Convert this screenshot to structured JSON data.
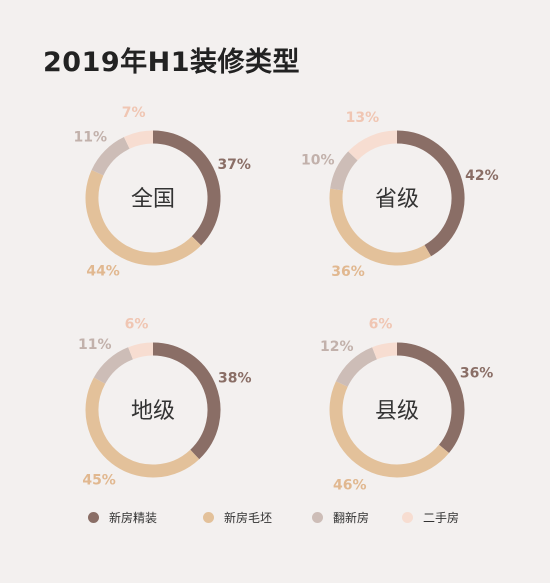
{
  "title": "2019年H1装修类型",
  "chart_data": [
    {
      "type": "donut",
      "label": "全国",
      "categories": [
        "新房精装",
        "新房毛坯",
        "翻新房",
        "二手房"
      ],
      "values": [
        37,
        44,
        11,
        7
      ],
      "value_labels": [
        "37%",
        "44%",
        "11%",
        "7%"
      ]
    },
    {
      "type": "donut",
      "label": "省级",
      "categories": [
        "新房精装",
        "新房毛坯",
        "翻新房",
        "二手房"
      ],
      "values": [
        42,
        36,
        10,
        13
      ],
      "value_labels": [
        "42%",
        "36%",
        "10%",
        "13%"
      ]
    },
    {
      "type": "donut",
      "label": "地级",
      "categories": [
        "新房精装",
        "新房毛坯",
        "翻新房",
        "二手房"
      ],
      "values": [
        38,
        45,
        11,
        6
      ],
      "value_labels": [
        "38%",
        "45%",
        "11%",
        "6%"
      ]
    },
    {
      "type": "donut",
      "label": "县级",
      "categories": [
        "新房精装",
        "新房毛坯",
        "翻新房",
        "二手房"
      ],
      "values": [
        36,
        46,
        12,
        6
      ],
      "value_labels": [
        "36%",
        "46%",
        "12%",
        "6%"
      ]
    }
  ],
  "legend": [
    {
      "label": "新房精装",
      "color": "#8a6e66"
    },
    {
      "label": "新房毛坯",
      "color": "#e3c19a"
    },
    {
      "label": "翻新房",
      "color": "#cdbdb7"
    },
    {
      "label": "二手房",
      "color": "#f7ddd1"
    }
  ],
  "colors": {
    "value_labels": [
      "#8a6e66",
      "#e1b890",
      "#c2b1ab",
      "#f0c6b3"
    ]
  }
}
